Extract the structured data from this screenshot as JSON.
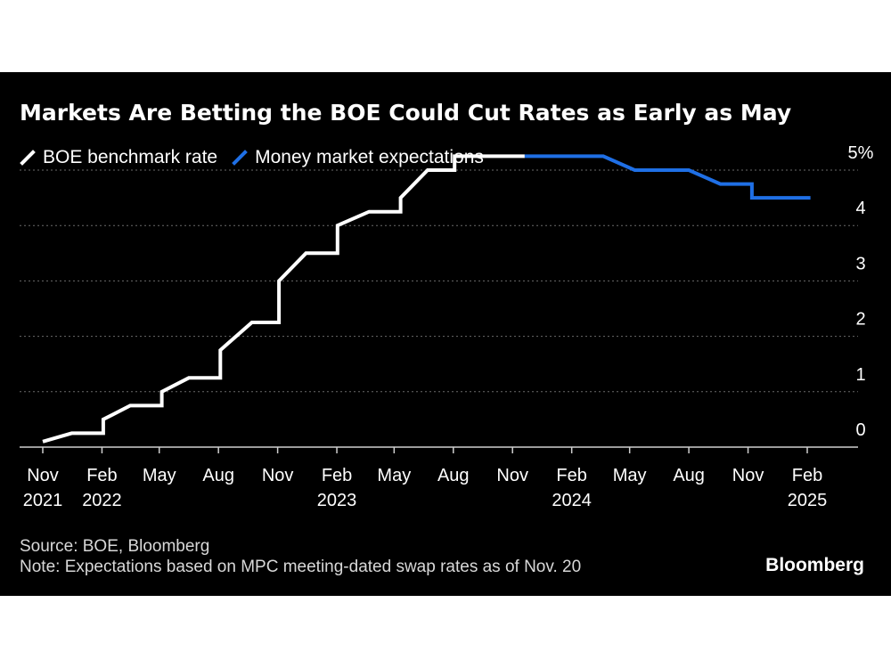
{
  "title": "Markets Are Betting the BOE Could Cut Rates as Early as May",
  "legend": {
    "items": [
      {
        "label": "BOE benchmark rate",
        "color": "#ffffff"
      },
      {
        "label": "Money market expectations",
        "color": "#1f6fe5"
      }
    ]
  },
  "footer": {
    "source": "Source: BOE, Bloomberg",
    "note": "Note: Expectations based on MPC meeting-dated swap rates as of Nov. 20",
    "brand": "Bloomberg"
  },
  "chart_data": {
    "type": "line",
    "title": "Markets Are Betting the BOE Could Cut Rates as Early as May",
    "xlabel": "",
    "ylabel": "",
    "ylim": [
      0,
      5
    ],
    "y_ticks": [
      {
        "value": 0,
        "label": "0"
      },
      {
        "value": 1,
        "label": "1"
      },
      {
        "value": 2,
        "label": "2"
      },
      {
        "value": 3,
        "label": "3"
      },
      {
        "value": 4,
        "label": "4"
      },
      {
        "value": 5,
        "label": "5%"
      }
    ],
    "x_ticks": [
      {
        "date": "2021-11",
        "label": "Nov",
        "year": "2021"
      },
      {
        "date": "2022-02",
        "label": "Feb",
        "year": "2022"
      },
      {
        "date": "2022-05",
        "label": "May",
        "year": ""
      },
      {
        "date": "2022-08",
        "label": "Aug",
        "year": ""
      },
      {
        "date": "2022-11",
        "label": "Nov",
        "year": ""
      },
      {
        "date": "2023-02",
        "label": "Feb",
        "year": "2023"
      },
      {
        "date": "2023-05",
        "label": "May",
        "year": ""
      },
      {
        "date": "2023-08",
        "label": "Aug",
        "year": ""
      },
      {
        "date": "2023-11",
        "label": "Nov",
        "year": ""
      },
      {
        "date": "2024-02",
        "label": "Feb",
        "year": "2024"
      },
      {
        "date": "2024-05",
        "label": "May",
        "year": ""
      },
      {
        "date": "2024-08",
        "label": "Aug",
        "year": ""
      },
      {
        "date": "2024-11",
        "label": "Nov",
        "year": ""
      },
      {
        "date": "2025-02",
        "label": "Feb",
        "year": "2025"
      }
    ],
    "grid": true,
    "legend_position": "top-left",
    "series": [
      {
        "name": "BOE benchmark rate",
        "color": "#ffffff",
        "points": [
          [
            "2021-11-01",
            0.1
          ],
          [
            "2021-12-16",
            0.25
          ],
          [
            "2022-02-03",
            0.25
          ],
          [
            "2022-02-03",
            0.5
          ],
          [
            "2022-03-17",
            0.75
          ],
          [
            "2022-05-05",
            0.75
          ],
          [
            "2022-05-05",
            1.0
          ],
          [
            "2022-06-16",
            1.25
          ],
          [
            "2022-08-04",
            1.25
          ],
          [
            "2022-08-04",
            1.75
          ],
          [
            "2022-09-22",
            2.25
          ],
          [
            "2022-11-03",
            2.25
          ],
          [
            "2022-11-03",
            3.0
          ],
          [
            "2022-12-15",
            3.5
          ],
          [
            "2023-02-02",
            3.5
          ],
          [
            "2023-02-02",
            4.0
          ],
          [
            "2023-03-23",
            4.25
          ],
          [
            "2023-05-11",
            4.25
          ],
          [
            "2023-05-11",
            4.5
          ],
          [
            "2023-06-22",
            5.0
          ],
          [
            "2023-08-03",
            5.0
          ],
          [
            "2023-08-03",
            5.25
          ],
          [
            "2023-11-20",
            5.25
          ]
        ]
      },
      {
        "name": "Money market expectations",
        "color": "#1f6fe5",
        "points": [
          [
            "2023-11-20",
            5.25
          ],
          [
            "2024-03-21",
            5.25
          ],
          [
            "2024-05-09",
            5.0
          ],
          [
            "2024-08-01",
            5.0
          ],
          [
            "2024-09-19",
            4.75
          ],
          [
            "2024-11-07",
            4.75
          ],
          [
            "2024-11-07",
            4.5
          ],
          [
            "2025-02-06",
            4.5
          ]
        ]
      }
    ]
  }
}
